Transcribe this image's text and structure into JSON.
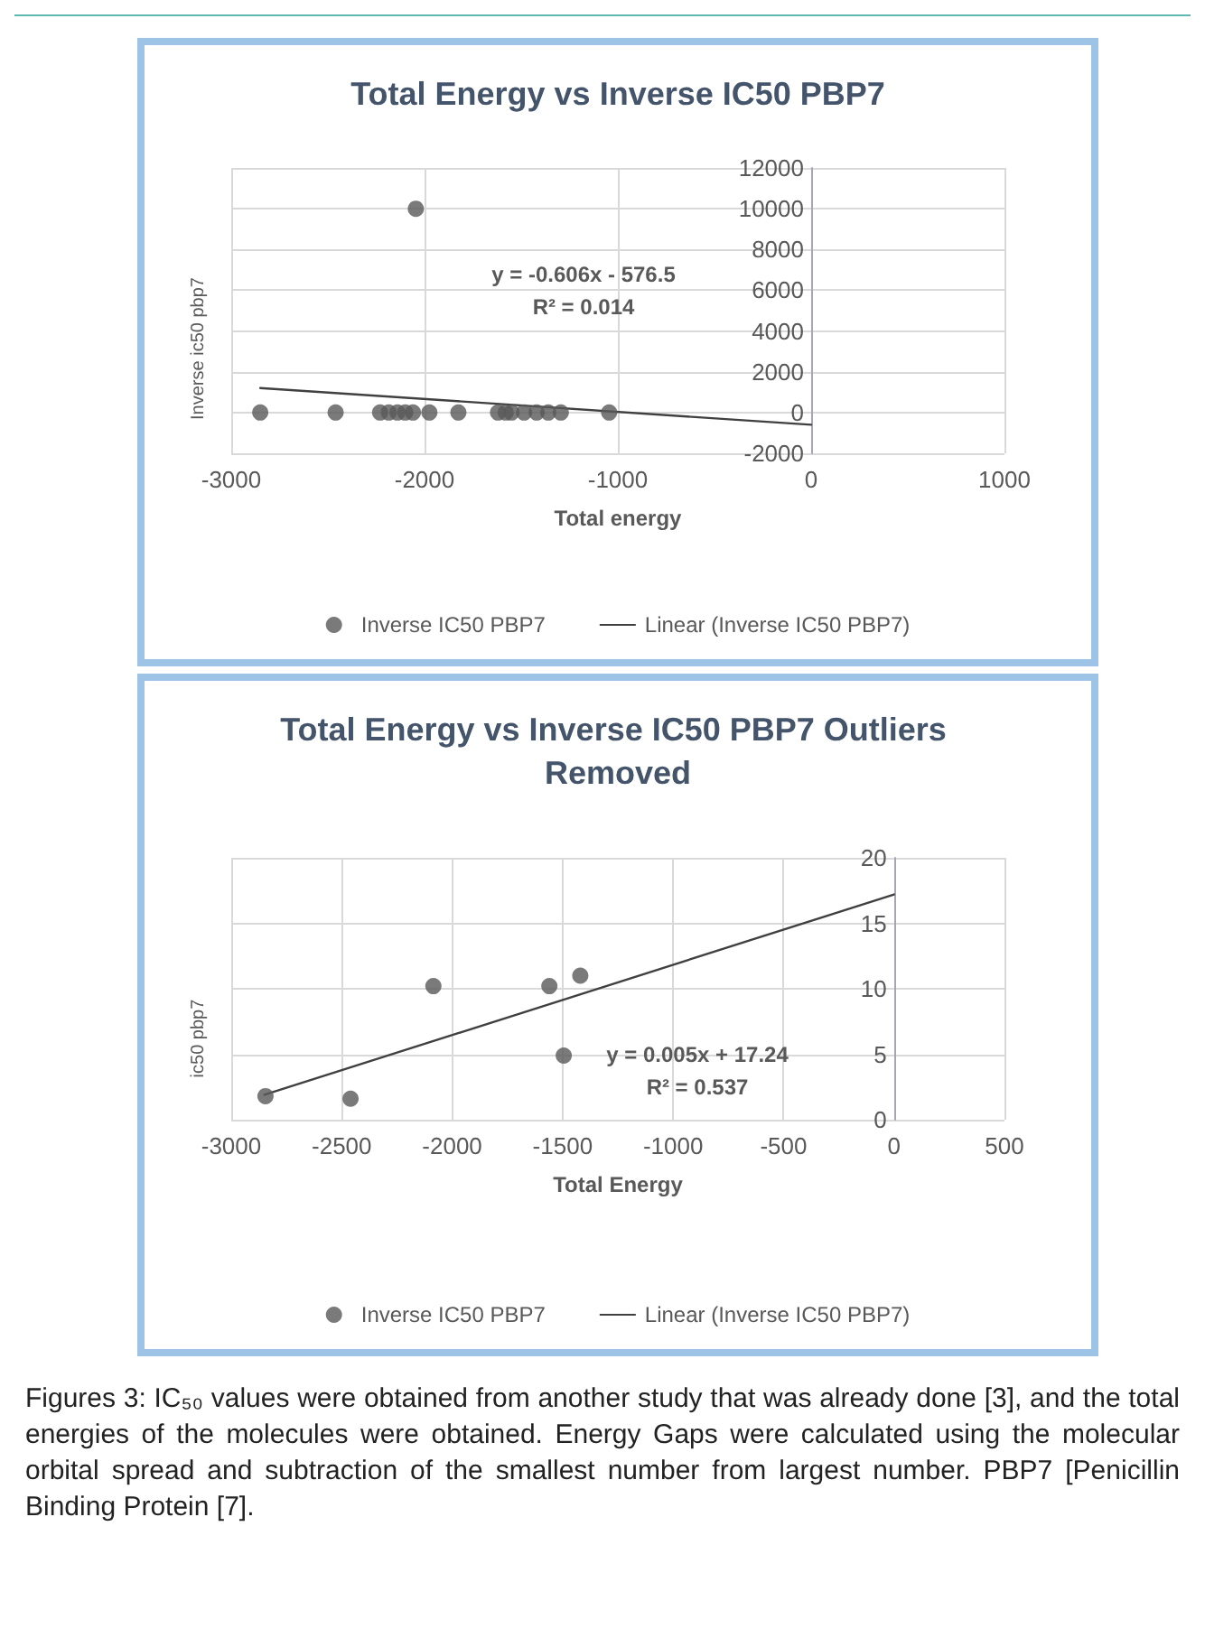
{
  "chart_data": [
    {
      "type": "scatter",
      "title": "Total Energy vs Inverse IC50 PBP7",
      "xlabel": "Total energy",
      "ylabel": "Inverse ic50 pbp7",
      "xlim": [
        -3000,
        1000
      ],
      "xticks": [
        -3000,
        -2000,
        -1000,
        0,
        1000
      ],
      "ylim": [
        -2000,
        12000
      ],
      "yticks": [
        -2000,
        0,
        2000,
        4000,
        6000,
        8000,
        10000,
        12000
      ],
      "grid": true,
      "legend": "bottom",
      "series": [
        {
          "name": "Inverse IC50 PBP7",
          "marker": "circle",
          "color": "#595959",
          "x": [
            -2850,
            -2460,
            -2230,
            -2185,
            -2140,
            -2100,
            -2060,
            -2045,
            -1975,
            -1825,
            -1620,
            -1580,
            -1550,
            -1485,
            -1420,
            -1360,
            -1295,
            -1045
          ],
          "values": [
            0,
            0,
            0,
            0,
            0,
            0,
            0,
            10000,
            0,
            0,
            0,
            0,
            0,
            0,
            0,
            0,
            0,
            0
          ]
        },
        {
          "name": "Linear (Inverse IC50 PBP7)",
          "type": "line",
          "color": "#404040",
          "x": [
            -2850,
            0
          ],
          "values": [
            1200,
            -600
          ]
        }
      ],
      "annotations": [
        "y = -0.606x - 576.5",
        "R² = 0.014"
      ]
    },
    {
      "type": "scatter",
      "title": "Total Energy vs Inverse IC50 PBP7 Outliers Removed",
      "xlabel": "Total Energy",
      "ylabel": "ic50 pbp7",
      "xlim": [
        -3000,
        500
      ],
      "xticks": [
        -3000,
        -2500,
        -2000,
        -1500,
        -1000,
        -500,
        0,
        500
      ],
      "ylim": [
        0,
        20
      ],
      "yticks": [
        0,
        5,
        10,
        15,
        20
      ],
      "grid": true,
      "legend": "bottom",
      "series": [
        {
          "name": "Inverse IC50 PBP7",
          "marker": "circle",
          "color": "#595959",
          "x": [
            -2845,
            -2460,
            -2085,
            -1560,
            -1420,
            -1495
          ],
          "values": [
            1.8,
            1.6,
            10.2,
            10.2,
            11.0,
            4.9
          ]
        },
        {
          "name": "Linear (Inverse IC50 PBP7)",
          "type": "line",
          "color": "#404040",
          "x": [
            -2850,
            0
          ],
          "values": [
            1.9,
            17.2
          ]
        }
      ],
      "annotations": [
        "y = 0.005x + 17.24",
        "R² = 0.537",
        "Figures 3: IC₅₀ values were obtained from another study that was already done [3], and the total energies of the molecules were obtained. Energy Gaps were calculated using the molecular orbital spread and subtraction of the smallest number from largest number. PBP7 [Penicillin Binding Protein [7]."
      ]
    }
  ]
}
